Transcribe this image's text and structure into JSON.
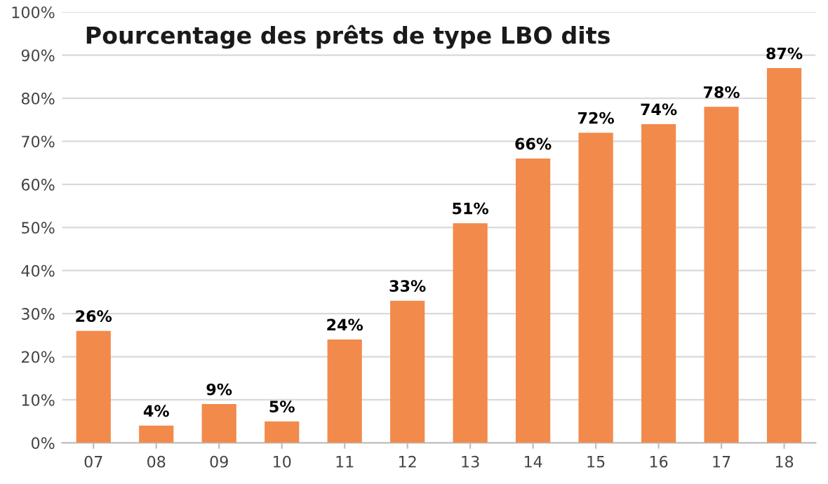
{
  "chart_data": {
    "type": "bar",
    "title": "Pourcentage des prêts de type LBO dits",
    "categories": [
      "07",
      "08",
      "09",
      "10",
      "11",
      "12",
      "13",
      "14",
      "15",
      "16",
      "17",
      "18"
    ],
    "values": [
      26,
      4,
      9,
      5,
      24,
      33,
      51,
      66,
      72,
      74,
      78,
      87
    ],
    "value_labels": [
      "26%",
      "4%",
      "9%",
      "5%",
      "24%",
      "33%",
      "51%",
      "66%",
      "72%",
      "74%",
      "78%",
      "87%"
    ],
    "color": "#f28a4b",
    "ylim": [
      0,
      100
    ],
    "yticks": [
      {
        "value": 0,
        "label": "0%"
      },
      {
        "value": 10,
        "label": "10%"
      },
      {
        "value": 20,
        "label": "20%"
      },
      {
        "value": 30,
        "label": "30%"
      },
      {
        "value": 40,
        "label": "40%"
      },
      {
        "value": 50,
        "label": "50%"
      },
      {
        "value": 60,
        "label": "60%"
      },
      {
        "value": 70,
        "label": "70%"
      },
      {
        "value": 80,
        "label": "80%"
      },
      {
        "value": 90,
        "label": "90%"
      },
      {
        "value": 100,
        "label": "100%"
      }
    ],
    "grid": "y",
    "legend": false
  }
}
